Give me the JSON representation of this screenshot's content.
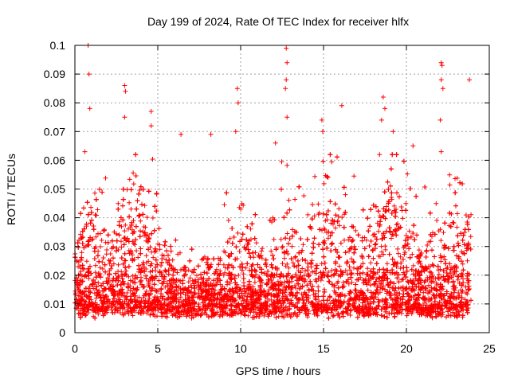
{
  "chart_data": {
    "type": "scatter",
    "title": "Day 199 of 2024, Rate Of TEC Index for receiver hlfx",
    "xlabel": "GPS time / hours",
    "ylabel": "ROTI / TECUs",
    "xlim": [
      0,
      25
    ],
    "ylim": [
      0,
      0.1
    ],
    "xticks": [
      0,
      5,
      10,
      15,
      20,
      25
    ],
    "yticks": [
      0,
      0.01,
      0.02,
      0.03,
      0.04,
      0.05,
      0.06,
      0.07,
      0.08,
      0.09,
      0.1
    ],
    "xtick_labels": [
      "0",
      "5",
      "10",
      "15",
      "20",
      "25"
    ],
    "ytick_labels": [
      "0",
      "0.01",
      "0.02",
      "0.03",
      "0.04",
      "0.05",
      "0.06",
      "0.07",
      "0.08",
      "0.09",
      "0.1"
    ],
    "grid": true,
    "marker": "+",
    "series": [
      {
        "name": "ROTI",
        "color": "#ff0000",
        "x_range": [
          0,
          23.9
        ],
        "typical_range": [
          0.005,
          0.025
        ],
        "n_points_approx": 7000,
        "notable_points": [
          {
            "x": 0.8,
            "y": 0.1
          },
          {
            "x": 0.85,
            "y": 0.09
          },
          {
            "x": 0.9,
            "y": 0.078
          },
          {
            "x": 0.6,
            "y": 0.063
          },
          {
            "x": 3.0,
            "y": 0.086
          },
          {
            "x": 3.05,
            "y": 0.084
          },
          {
            "x": 3.0,
            "y": 0.075
          },
          {
            "x": 4.6,
            "y": 0.077
          },
          {
            "x": 4.6,
            "y": 0.072
          },
          {
            "x": 6.4,
            "y": 0.069
          },
          {
            "x": 8.2,
            "y": 0.069
          },
          {
            "x": 9.8,
            "y": 0.085
          },
          {
            "x": 9.85,
            "y": 0.08
          },
          {
            "x": 9.7,
            "y": 0.07
          },
          {
            "x": 12.1,
            "y": 0.066
          },
          {
            "x": 12.75,
            "y": 0.099
          },
          {
            "x": 12.8,
            "y": 0.094
          },
          {
            "x": 12.75,
            "y": 0.088
          },
          {
            "x": 12.7,
            "y": 0.085
          },
          {
            "x": 12.8,
            "y": 0.075
          },
          {
            "x": 14.9,
            "y": 0.074
          },
          {
            "x": 14.95,
            "y": 0.07
          },
          {
            "x": 16.1,
            "y": 0.079
          },
          {
            "x": 18.6,
            "y": 0.082
          },
          {
            "x": 18.7,
            "y": 0.078
          },
          {
            "x": 18.5,
            "y": 0.074
          },
          {
            "x": 19.2,
            "y": 0.07
          },
          {
            "x": 20.4,
            "y": 0.065
          },
          {
            "x": 22.1,
            "y": 0.094
          },
          {
            "x": 22.15,
            "y": 0.093
          },
          {
            "x": 22.1,
            "y": 0.088
          },
          {
            "x": 22.2,
            "y": 0.085
          },
          {
            "x": 22.05,
            "y": 0.074
          },
          {
            "x": 22.1,
            "y": 0.063
          },
          {
            "x": 23.8,
            "y": 0.088
          }
        ]
      }
    ]
  }
}
